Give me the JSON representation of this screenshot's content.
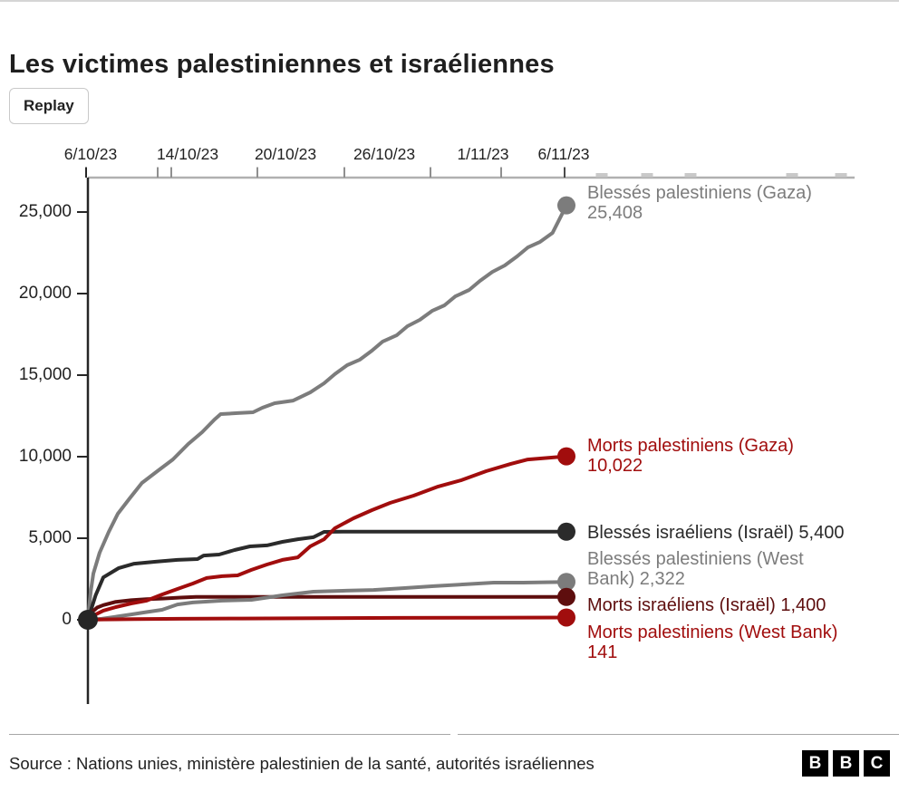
{
  "page": {
    "title": "Les victimes palestiniennes et israéliennes",
    "replay_label": "Replay",
    "source_text": "Source : Nations unies, ministère palestinien de la santé, autorités israéliennes",
    "logo_letters": [
      "B",
      "B",
      "C"
    ]
  },
  "colors": {
    "axis": "#262626",
    "top_axis_line": "#b0b0b0",
    "tick": "#8f8f8f",
    "light_tick": "#c9c9c9",
    "text": "#222222",
    "gray_series": "#7c7c7c",
    "black_series": "#2b2b2b",
    "red_series": "#a10d0d",
    "maroon_series": "#5e0e0e"
  },
  "chart_data": {
    "type": "line",
    "title": "Les victimes palestiniennes et israéliennes",
    "xlabel": "",
    "ylabel": "",
    "x_tick_labels": [
      "6/10/23",
      "14/10/23",
      "20/10/23",
      "26/10/23",
      "1/11/23",
      "6/11/23"
    ],
    "x_days_range": [
      0,
      31
    ],
    "y_tick_values": [
      0,
      5000,
      10000,
      15000,
      20000,
      25000
    ],
    "y_tick_labels": [
      "0",
      "5,000",
      "10,000",
      "15,000",
      "20,000",
      "25,000"
    ],
    "ylim": [
      0,
      27000
    ],
    "grid": false,
    "legend_position": "right-of-line-ends",
    "series": [
      {
        "id": "blesses-palestiniens-gaza",
        "label_lines": [
          "Blessés palestiniens (Gaza)",
          "25,408"
        ],
        "final_value": 25408,
        "final_label": "25,408",
        "color_key": "gray_series",
        "days": [
          0,
          0.18,
          0.35,
          0.76,
          1.35,
          1.94,
          2.7,
          3.5,
          4.5,
          5.5,
          6.5,
          7.4,
          8.2,
          8.6,
          9.7,
          10.7,
          11.3,
          12.1,
          13.3,
          14.4,
          15.3,
          16,
          16.8,
          17.6,
          18.4,
          19.1,
          20,
          20.7,
          21.5,
          22.3,
          23.1,
          23.8,
          24.7,
          25.4,
          26.2,
          27,
          27.8,
          28.5,
          29.3,
          30.1,
          31
        ],
        "values": [
          0,
          1720,
          2830,
          4110,
          5390,
          6500,
          7440,
          8390,
          9110,
          9830,
          10780,
          11500,
          12280,
          12610,
          12670,
          12720,
          13000,
          13280,
          13440,
          13940,
          14500,
          15060,
          15610,
          15940,
          16500,
          17060,
          17440,
          18000,
          18390,
          18940,
          19280,
          19830,
          20220,
          20780,
          21330,
          21720,
          22280,
          22830,
          23170,
          23720,
          25408
        ]
      },
      {
        "id": "blesses-israeliens",
        "label_lines": [
          "Blessés israéliens (Israël) 5,400"
        ],
        "final_value": 5400,
        "final_label": "5,400",
        "color_key": "black_series",
        "days": [
          0,
          0.5,
          1,
          2,
          3,
          4.4,
          5.8,
          7.1,
          7.5,
          8.5,
          9.5,
          10.5,
          11.6,
          12.6,
          13.6,
          14.6,
          15.3,
          16.5,
          31
        ],
        "values": [
          0,
          1500,
          2600,
          3170,
          3440,
          3560,
          3670,
          3720,
          3940,
          4000,
          4280,
          4500,
          4560,
          4780,
          4940,
          5060,
          5390,
          5400,
          5400
        ]
      },
      {
        "id": "morts-israeliens",
        "label_lines": [
          "Morts israéliens (Israël) 1,400"
        ],
        "final_value": 1400,
        "final_label": "1,400",
        "color_key": "maroon_series",
        "days": [
          0,
          0.3,
          0.6,
          1,
          1.8,
          2.8,
          3.8,
          4.8,
          6,
          7,
          31
        ],
        "values": [
          0,
          500,
          750,
          900,
          1100,
          1200,
          1260,
          1300,
          1360,
          1400,
          1400
        ]
      },
      {
        "id": "morts-palestiniens-gaza",
        "label_lines": [
          "Morts palestiniens (Gaza)",
          "10,022"
        ],
        "final_value": 10022,
        "final_label": "10,022",
        "color_key": "red_series",
        "days": [
          0,
          0.4,
          1,
          1.8,
          2.8,
          3.8,
          4.8,
          5.8,
          6.8,
          7.7,
          8.7,
          9.7,
          10.6,
          11.6,
          12.6,
          13.6,
          14.4,
          15.3,
          16,
          17.2,
          18.4,
          19.6,
          21.1,
          22.7,
          24.2,
          25.8,
          27.4,
          28.5,
          31
        ],
        "values": [
          0,
          280,
          560,
          780,
          1000,
          1170,
          1550,
          1890,
          2220,
          2560,
          2670,
          2720,
          3060,
          3390,
          3670,
          3830,
          4500,
          4940,
          5610,
          6220,
          6720,
          7170,
          7610,
          8170,
          8560,
          9110,
          9560,
          9830,
          10022
        ]
      },
      {
        "id": "blesses-palestiniens-west-bank",
        "label_lines": [
          "Blessés palestiniens (West",
          "Bank) 2,322"
        ],
        "final_value": 2322,
        "final_label": "2,322",
        "color_key": "gray_series",
        "days": [
          0,
          0.9,
          1.9,
          2.8,
          3.8,
          4.8,
          5.8,
          6.8,
          8.7,
          10.6,
          12.6,
          14.6,
          16.5,
          18.5,
          20.4,
          22.4,
          24.4,
          26.3,
          28.2,
          31
        ],
        "values": [
          0,
          60,
          200,
          330,
          470,
          610,
          940,
          1060,
          1170,
          1220,
          1500,
          1720,
          1780,
          1830,
          1940,
          2060,
          2170,
          2280,
          2280,
          2322
        ]
      },
      {
        "id": "morts-palestiniens-west-bank",
        "label_lines": [
          "Morts palestiniens (West Bank)",
          "141"
        ],
        "final_value": 141,
        "final_label": "141",
        "color_key": "red_series",
        "days": [
          0,
          1,
          3,
          6,
          10,
          15,
          20,
          25,
          31
        ],
        "values": [
          0,
          20,
          40,
          60,
          80,
          100,
          115,
          128,
          141
        ]
      }
    ]
  }
}
